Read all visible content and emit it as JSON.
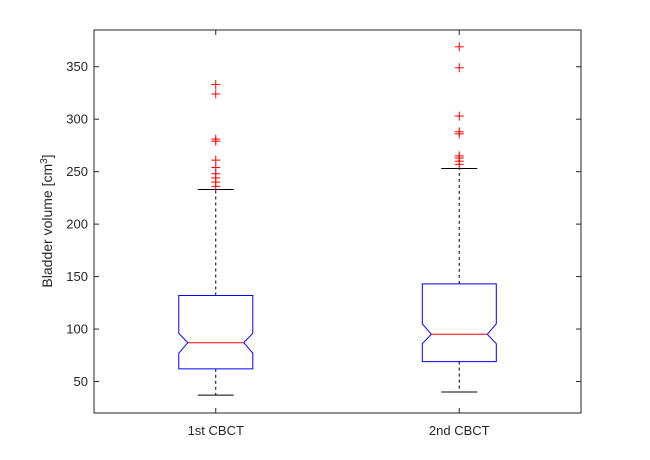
{
  "chart_data": {
    "type": "box",
    "categories": [
      "1st CBCT",
      "2nd CBCT"
    ],
    "ylabel": "Bladder volume [cm",
    "ylabel_superscript": "3",
    "ylabel_suffix": "]",
    "ylim": [
      20,
      385
    ],
    "yticks": [
      50,
      100,
      150,
      200,
      250,
      300,
      350
    ],
    "notched": true,
    "boxes": [
      {
        "category": "1st CBCT",
        "whisker_low": 37,
        "q1": 62,
        "notch_low": 77,
        "median": 87,
        "notch_high": 96,
        "q3": 132,
        "whisker_high": 233,
        "outliers": [
          236,
          240,
          244,
          248,
          254,
          261,
          279,
          281,
          324,
          333
        ]
      },
      {
        "category": "2nd CBCT",
        "whisker_low": 40,
        "q1": 69,
        "notch_low": 86,
        "median": 95,
        "notch_high": 105,
        "q3": 143,
        "whisker_high": 253,
        "outliers": [
          257,
          260,
          263,
          265,
          286,
          288,
          303,
          349,
          369
        ]
      }
    ],
    "colors": {
      "box": "#0000ff",
      "median": "#ff0000",
      "outlier": "#ff0000",
      "whisker": "#000000",
      "axes": "#262626"
    }
  }
}
